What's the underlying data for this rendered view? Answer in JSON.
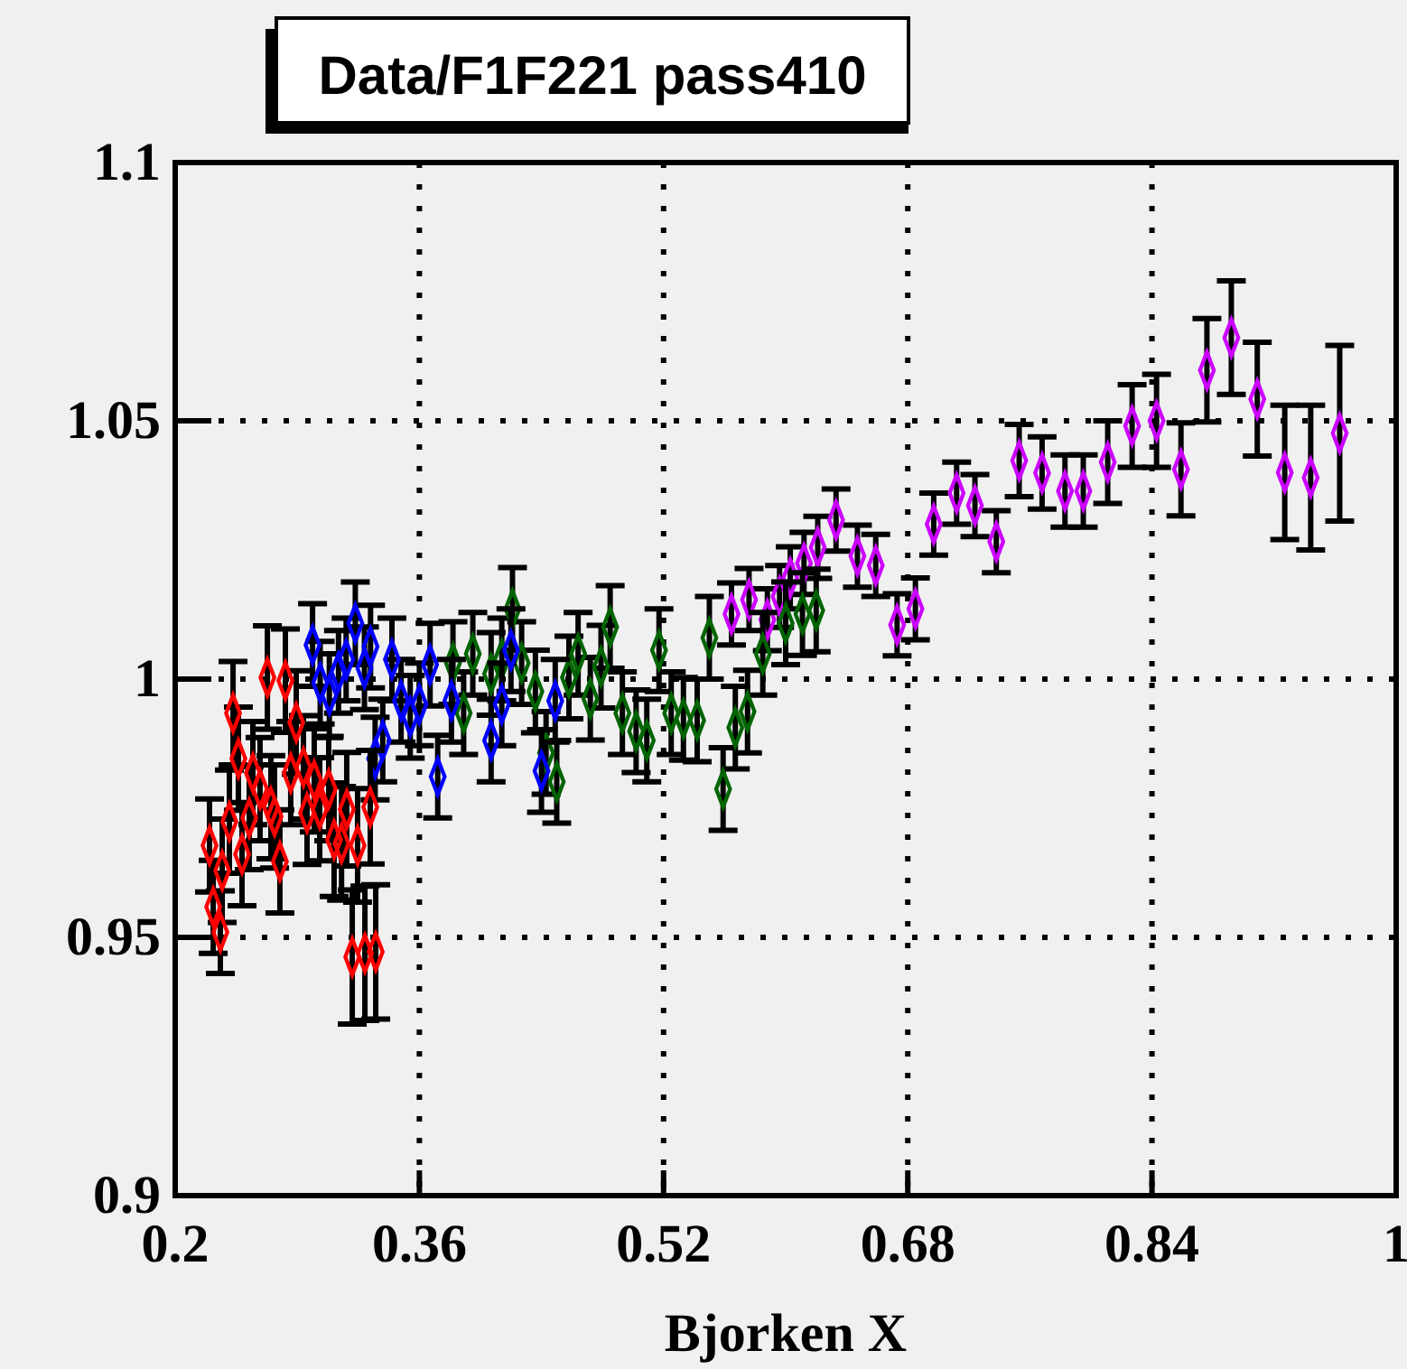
{
  "chart_data": {
    "type": "scatter",
    "title": "Data/F1F221 pass410",
    "xlabel": "Bjorken X",
    "xlim": [
      0.2,
      1
    ],
    "xticks": [
      0.2,
      0.36,
      0.52,
      0.68,
      0.84,
      1
    ],
    "ylim": [
      0.9,
      1.1
    ],
    "yticks": [
      0.9,
      0.95,
      1,
      1.05,
      1.1
    ],
    "grid": true,
    "marker": "diamond",
    "series": [
      {
        "color": "#ff0000",
        "x": [
          0.2225,
          0.2249,
          0.2296,
          0.2308,
          0.2355,
          0.2379,
          0.2414,
          0.2438,
          0.2485,
          0.2509,
          0.2556,
          0.2604,
          0.2627,
          0.2651,
          0.2686,
          0.2722,
          0.2757,
          0.2793,
          0.284,
          0.2864,
          0.2911,
          0.2947,
          0.3006,
          0.3041,
          0.309,
          0.3124,
          0.316,
          0.3195,
          0.3243,
          0.3278,
          0.3314
        ],
        "values": [
          0.9678,
          0.9559,
          0.951,
          0.9629,
          0.9724,
          0.9934,
          0.9846,
          0.9661,
          0.9731,
          0.9818,
          0.9787,
          1.0003,
          0.9752,
          0.9734,
          0.9647,
          0.9997,
          0.9818,
          0.9916,
          0.9829,
          0.9741,
          0.9804,
          0.9748,
          0.9787,
          0.9689,
          0.9682,
          0.9748,
          0.9462,
          0.9678,
          0.9469,
          0.9752,
          0.9472
        ],
        "errors": [
          0.009,
          0.009,
          0.008,
          0.01,
          0.01,
          0.01,
          0.01,
          0.01,
          0.01,
          0.01,
          0.01,
          0.01,
          0.01,
          0.01,
          0.01,
          0.01,
          0.01,
          0.01,
          0.01,
          0.01,
          0.01,
          0.01,
          0.01,
          0.011,
          0.011,
          0.011,
          0.013,
          0.011,
          0.013,
          0.011,
          0.013
        ]
      },
      {
        "color": "#0000ff",
        "x": [
          0.29,
          0.295,
          0.301,
          0.307,
          0.312,
          0.318,
          0.324,
          0.328,
          0.331,
          0.336,
          0.342,
          0.348,
          0.354,
          0.36,
          0.367,
          0.372,
          0.381,
          0.407,
          0.414,
          0.42,
          0.44,
          0.449
        ],
        "values": [
          1.0066,
          0.9993,
          0.9969,
          1.0014,
          1.0038,
          1.0108,
          1.0021,
          1.0063,
          0.9846,
          0.9881,
          1.0038,
          0.9958,
          0.9927,
          0.9951,
          1.0028,
          0.9811,
          0.9958,
          0.9881,
          0.9951,
          1.0056,
          0.9822,
          0.9958
        ],
        "errors": [
          0.008,
          0.008,
          0.008,
          0.008,
          0.008,
          0.008,
          0.008,
          0.008,
          0.008,
          0.008,
          0.008,
          0.008,
          0.008,
          0.008,
          0.008,
          0.008,
          0.008,
          0.008,
          0.008,
          0.008,
          0.008,
          0.008
        ]
      },
      {
        "color": "#006400",
        "x": [
          0.382,
          0.389,
          0.395,
          0.407,
          0.414,
          0.421,
          0.427,
          0.436,
          0.443,
          0.45,
          0.458,
          0.464,
          0.472,
          0.479,
          0.485,
          0.493,
          0.502,
          0.509,
          0.517,
          0.525,
          0.533,
          0.542,
          0.55,
          0.559,
          0.567,
          0.575,
          0.585,
          0.6,
          0.611,
          0.62
        ],
        "values": [
          1.0031,
          0.9934,
          1.0049,
          1.001,
          1.0038,
          1.0136,
          1.0031,
          0.9976,
          0.9857,
          0.9801,
          1.0003,
          1.0049,
          0.9962,
          1.0024,
          1.0101,
          0.9934,
          0.9899,
          0.9881,
          1.0056,
          0.9934,
          0.9923,
          0.992,
          1.008,
          0.9787,
          0.9906,
          0.9937,
          1.0049,
          1.0108,
          1.0126,
          1.0133
        ],
        "errors": [
          0.008,
          0.008,
          0.008,
          0.008,
          0.008,
          0.008,
          0.008,
          0.008,
          0.008,
          0.008,
          0.008,
          0.008,
          0.008,
          0.008,
          0.008,
          0.008,
          0.008,
          0.008,
          0.008,
          0.008,
          0.008,
          0.008,
          0.008,
          0.008,
          0.008,
          0.008,
          0.008,
          0.008,
          0.008,
          0.008
        ]
      },
      {
        "color": "#cc00ff",
        "x": [
          0.5645,
          0.576,
          0.588,
          0.596,
          0.603,
          0.612,
          0.621,
          0.633,
          0.647,
          0.659,
          0.673,
          0.685,
          0.697,
          0.712,
          0.724,
          0.738,
          0.753,
          0.768,
          0.783,
          0.795,
          0.811,
          0.827,
          0.843,
          0.859,
          0.876,
          0.892,
          0.909,
          0.927,
          0.944,
          0.963
        ],
        "values": [
          1.0126,
          1.0154,
          1.0115,
          1.016,
          1.0196,
          1.0224,
          1.0255,
          1.0308,
          1.0238,
          1.022,
          1.0105,
          1.0136,
          1.03,
          1.036,
          1.0336,
          1.0266,
          1.0423,
          1.0399,
          1.0364,
          1.0364,
          1.042,
          1.049,
          1.05,
          1.0406,
          1.0598,
          1.0661,
          1.0542,
          1.04,
          1.039,
          1.0476
        ],
        "errors": [
          0.006,
          0.006,
          0.006,
          0.006,
          0.006,
          0.006,
          0.006,
          0.006,
          0.006,
          0.006,
          0.006,
          0.006,
          0.006,
          0.006,
          0.006,
          0.006,
          0.007,
          0.007,
          0.007,
          0.007,
          0.008,
          0.008,
          0.009,
          0.009,
          0.01,
          0.011,
          0.011,
          0.013,
          0.014,
          0.017
        ]
      }
    ]
  }
}
